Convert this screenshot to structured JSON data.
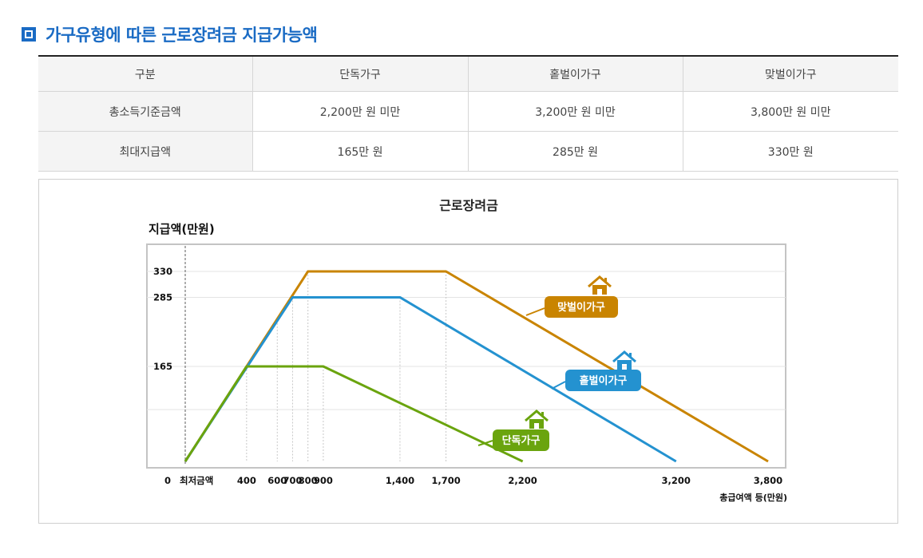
{
  "page": {
    "heading": "가구유형에 따른 근로장려금 지급가능액"
  },
  "table": {
    "headers": [
      "구분",
      "단독가구",
      "홑벌이가구",
      "맞벌이가구"
    ],
    "rows": [
      {
        "label": "총소득기준금액",
        "values": [
          "2,200만 원 미만",
          "3,200만 원 미만",
          "3,800만 원 미만"
        ]
      },
      {
        "label": "최대지급액",
        "values": [
          "165만 원",
          "285만 원",
          "330만 원"
        ]
      }
    ]
  },
  "chart_data": {
    "type": "line",
    "title": "근로장려금",
    "ylabel": "지급액(만원)",
    "xlabel": "총급여액 등(만원)",
    "x_origin_label": "0",
    "x_min_label": "최저금액",
    "xlim": [
      0,
      3850
    ],
    "ylim": [
      0,
      360
    ],
    "x_ticks": [
      400,
      600,
      700,
      800,
      900,
      1400,
      1700,
      2200,
      3200,
      3800
    ],
    "x_tick_labels": [
      "400",
      "600",
      "700",
      "800",
      "900",
      "1,400",
      "1,700",
      "2,200",
      "3,200",
      "3,800"
    ],
    "y_ticks": [
      165,
      285,
      330
    ],
    "y_tick_labels": [
      "165",
      "285",
      "330"
    ],
    "grid": true,
    "series": [
      {
        "name": "맞벌이가구",
        "color": "#c98400",
        "icon": "house-icon",
        "points": [
          [
            0,
            0
          ],
          [
            800,
            330
          ],
          [
            1700,
            330
          ],
          [
            3800,
            0
          ]
        ]
      },
      {
        "name": "홑벌이가구",
        "color": "#2492d0",
        "icon": "house-icon",
        "points": [
          [
            0,
            0
          ],
          [
            700,
            285
          ],
          [
            1400,
            285
          ],
          [
            3200,
            0
          ]
        ]
      },
      {
        "name": "단독가구",
        "color": "#6aa40e",
        "icon": "house-icon",
        "points": [
          [
            0,
            0
          ],
          [
            400,
            165
          ],
          [
            900,
            165
          ],
          [
            2200,
            0
          ]
        ]
      }
    ]
  }
}
